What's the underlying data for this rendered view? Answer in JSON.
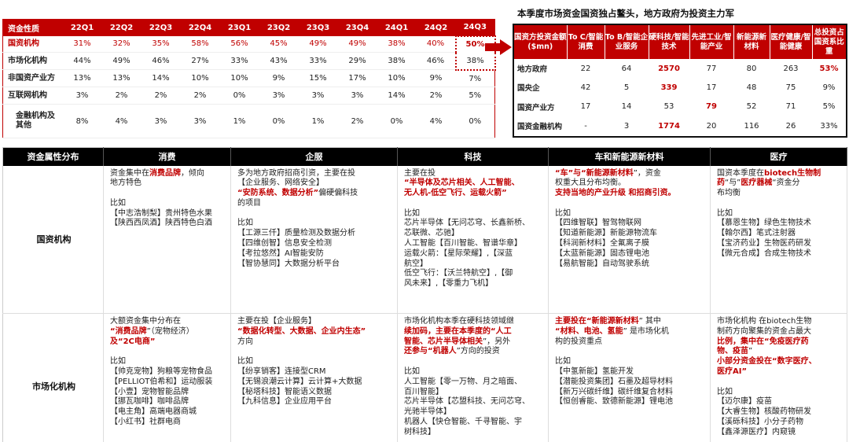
{
  "left_table": {
    "headers": [
      "资金性质",
      "22Q1",
      "22Q2",
      "22Q3",
      "22Q4",
      "23Q1",
      "23Q2",
      "23Q3",
      "23Q4",
      "24Q1",
      "24Q2",
      "24Q3"
    ],
    "rows": [
      {
        "label": "国资机构",
        "values": [
          "31%",
          "32%",
          "35%",
          "58%",
          "56%",
          "45%",
          "49%",
          "49%",
          "38%",
          "40%",
          "50%"
        ]
      },
      {
        "label": "市场化机构",
        "values": [
          "44%",
          "49%",
          "46%",
          "27%",
          "33%",
          "43%",
          "33%",
          "29%",
          "38%",
          "46%",
          "38%"
        ]
      },
      {
        "label": "非国资产业方",
        "values": [
          "13%",
          "13%",
          "14%",
          "10%",
          "10%",
          "9%",
          "15%",
          "17%",
          "10%",
          "9%",
          "7%"
        ]
      },
      {
        "label": "互联网机构",
        "values": [
          "3%",
          "2%",
          "2%",
          "2%",
          "0%",
          "3%",
          "3%",
          "3%",
          "14%",
          "2%",
          "5%"
        ]
      },
      {
        "label": "金融机构及其他",
        "values": [
          "8%",
          "4%",
          "3%",
          "3%",
          "1%",
          "0%",
          "1%",
          "2%",
          "0%",
          "4%",
          "0%"
        ]
      }
    ]
  },
  "right_table": {
    "title": "本季度市场资金国资独占鳌头，地方政府为投资主力军",
    "headers": [
      "国资方投资金额($mn)",
      "To C/智能消费",
      "To B/智能企业服务",
      "硬科技/智能技术",
      "先进工业/智能产业",
      "新能源新材料",
      "医疗健康/智能健康",
      "总投资占国资系比重"
    ],
    "rows": [
      {
        "label": "地方政府",
        "values": [
          "22",
          "64",
          "2570",
          "77",
          "80",
          "263",
          "53%"
        ]
      },
      {
        "label": "国央企",
        "values": [
          "42",
          "5",
          "339",
          "17",
          "48",
          "75",
          "9%"
        ]
      },
      {
        "label": "国资产业方",
        "values": [
          "17",
          "14",
          "53",
          "79",
          "52",
          "71",
          "5%"
        ]
      },
      {
        "label": "国资金融机构",
        "values": [
          "-",
          "3",
          "1774",
          "20",
          "116",
          "26",
          "33%"
        ]
      }
    ]
  },
  "bottom_table": {
    "headers": [
      "资金属性分布",
      "消费",
      "企服",
      "科技",
      "车和新能源新材料",
      "医疗"
    ],
    "rows": [
      {
        "label": "国资机构",
        "cells": [
          [
            [
              [
                "资金集中在",
                ""
              ],
              [
                "消费品牌",
                "r"
              ],
              [
                "，倾向",
                ""
              ]
            ],
            [
              [
                "地方特色",
                ""
              ]
            ],
            [],
            [
              [
                "比如",
                ""
              ]
            ],
            [
              [
                "【中志浩制梨】贵州特色水果",
                ""
              ]
            ],
            [
              [
                "【陕西西凤酒】陕西特色白酒",
                ""
              ]
            ]
          ],
          [
            [
              [
                "多为地方政府招商引资，主要在投",
                ""
              ]
            ],
            [
              [
                "【企业服务、网络安全】",
                ""
              ]
            ],
            [
              [
                "“安防系统、数据分析”",
                "r"
              ],
              [
                "偏硬偏科技",
                ""
              ]
            ],
            [
              [
                "的项目",
                ""
              ]
            ],
            [],
            [
              [
                "比如",
                ""
              ]
            ],
            [
              [
                "【工源三仟】质量检测及数据分析",
                ""
              ]
            ],
            [
              [
                "【四维创智】信息安全检测",
                ""
              ]
            ],
            [
              [
                "【考拉悠然】AI智能安防",
                ""
              ]
            ],
            [
              [
                "【智协慧同】大数据分析平台",
                ""
              ]
            ]
          ],
          [
            [
              [
                "主要在投",
                ""
              ]
            ],
            [
              [
                "“半导体及芯片相关、人工智能、",
                "r"
              ]
            ],
            [
              [
                "无人机-低空飞行、运载火箭”",
                "r"
              ]
            ],
            [],
            [
              [
                "比如",
                ""
              ]
            ],
            [
              [
                "芯片半导体【无问芯穹、长鑫新桥、",
                ""
              ]
            ],
            [
              [
                "芯联微、芯驰】",
                ""
              ]
            ],
            [
              [
                "人工智能【百川智能、智谱华章】",
                ""
              ]
            ],
            [
              [
                "运载火箭：【星际荣耀】,【深蓝",
                ""
              ]
            ],
            [
              [
                "航空】",
                ""
              ]
            ],
            [
              [
                "低空飞行：【沃兰特航空】,【御",
                ""
              ]
            ],
            [
              [
                "风未来】,【零重力飞机】",
                ""
              ]
            ]
          ],
          [
            [
              [
                "“车”与“",
                "r"
              ],
              [
                "新能源新材料",
                "r"
              ],
              [
                "”，资金",
                ""
              ]
            ],
            [
              [
                "权重大且分布均衡。",
                ""
              ]
            ],
            [
              [
                "支持当地的产业升级 和招商引资。",
                "r"
              ]
            ],
            [],
            [
              [
                "比如",
                ""
              ]
            ],
            [
              [
                "【四维智联】智驾物联网",
                ""
              ]
            ],
            [
              [
                "【知道新能源】新能源物流车",
                ""
              ]
            ],
            [
              [
                "【科润新材料】全氟离子膜",
                ""
              ]
            ],
            [
              [
                "【太蓝新能源】固态锂电池",
                ""
              ]
            ],
            [
              [
                "【易航智能】自动驾驶系统",
                ""
              ]
            ]
          ],
          [
            [
              [
                "国资本季度在",
                ""
              ],
              [
                "biotech生物制",
                "r"
              ]
            ],
            [
              [
                "药",
                "r"
              ],
              [
                "“与”",
                ""
              ],
              [
                "医疗器械",
                "r"
              ],
              [
                "“资金分",
                ""
              ]
            ],
            [
              [
                "布均衡",
                ""
              ]
            ],
            [],
            [
              [
                "比如",
                ""
              ]
            ],
            [
              [
                "【慕恩生物】绿色生物技术",
                ""
              ]
            ],
            [
              [
                "【翰尔西】笔式注射器",
                ""
              ]
            ],
            [
              [
                "【宝济药业】生物医药研发",
                ""
              ]
            ],
            [
              [
                "【微元合成】合成生物技术",
                ""
              ]
            ]
          ]
        ]
      },
      {
        "label": "市场化机构",
        "cells": [
          [
            [
              [
                "大额资金集中分布在",
                ""
              ]
            ],
            [
              [
                "“",
                "r"
              ],
              [
                "消费品牌",
                "r"
              ],
              [
                "”（宠物经济）",
                ""
              ]
            ],
            [
              [
                "及“",
                "r"
              ],
              [
                "2C电商",
                "r"
              ],
              [
                "”",
                "r"
              ]
            ],
            [],
            [
              [
                "比如",
                ""
              ]
            ],
            [
              [
                "【帅克宠物】狗粮等宠物食品",
                ""
              ]
            ],
            [
              [
                "【PELLIOT伯希和】运动服装",
                ""
              ]
            ],
            [
              [
                "【小壹】宠物智能品牌",
                ""
              ]
            ],
            [
              [
                "【挪瓦咖啡】咖啡品牌",
                ""
              ]
            ],
            [
              [
                "【电主角】高端电器商城",
                ""
              ]
            ],
            [
              [
                "【小红书】社群电商",
                ""
              ]
            ]
          ],
          [
            [
              [
                "主要在投【企业服务】",
                ""
              ]
            ],
            [
              [
                "“数据化转型、大数据、企业内生态”",
                "r"
              ]
            ],
            [
              [
                "方向",
                ""
              ]
            ],
            [],
            [
              [
                "比如",
                ""
              ]
            ],
            [
              [
                "【纷享销客】连接型CRM",
                ""
              ]
            ],
            [
              [
                "【无锡浪潮云计算】云计算+大数据",
                ""
              ]
            ],
            [
              [
                "【秘塔科技】智能语义数据",
                ""
              ]
            ],
            [
              [
                "【九科信息】企业应用平台",
                ""
              ]
            ]
          ],
          [
            [
              [
                "市场化机构本季在硬科技领域继",
                ""
              ]
            ],
            [
              [
                "续加码，主要在本季度的“",
                "r"
              ],
              [
                "人工",
                "r"
              ]
            ],
            [
              [
                "智能、芯片半导体相关",
                "r"
              ],
              [
                "”，另外",
                ""
              ]
            ],
            [
              [
                "还参与“",
                "r"
              ],
              [
                "机器人",
                "r"
              ],
              [
                "”方向的投资",
                ""
              ]
            ],
            [],
            [
              [
                "比如",
                ""
              ]
            ],
            [
              [
                "人工智能【零一万物、月之暗面、",
                ""
              ]
            ],
            [
              [
                "百川智能】",
                ""
              ]
            ],
            [
              [
                "芯片半导体【芯盟科技、无问芯穹、",
                ""
              ]
            ],
            [
              [
                "光驰半导体】",
                ""
              ]
            ],
            [
              [
                "机器人【快仓智能、千寻智能、宇",
                ""
              ]
            ],
            [
              [
                "树科技】",
                ""
              ]
            ]
          ],
          [
            [
              [
                "主要投在“",
                "r"
              ],
              [
                "新能源新材料",
                "r"
              ],
              [
                "” 其中",
                ""
              ]
            ],
            [
              [
                "“",
                "r"
              ],
              [
                "材料、电池、氢能",
                "r"
              ],
              [
                "” 是市场化机",
                ""
              ]
            ],
            [
              [
                "构的投资重点",
                ""
              ]
            ],
            [],
            [
              [
                "比如",
                ""
              ]
            ],
            [
              [
                "【中氢新能】氢能开发",
                ""
              ]
            ],
            [
              [
                "【潜能投资集团】石墨及超导材料",
                ""
              ]
            ],
            [
              [
                "【新万兴碳纤维】碳纤维复合材料",
                ""
              ]
            ],
            [
              [
                "【恒创睿能、致德新能源】锂电池",
                ""
              ]
            ]
          ],
          [
            [
              [
                "市场化机构 在biotech生物",
                ""
              ]
            ],
            [
              [
                "制药方向聚集的资金占最大",
                ""
              ]
            ],
            [
              [
                "比例，集中在“",
                "r"
              ],
              [
                "免疫医疗药",
                "r"
              ]
            ],
            [
              [
                "物、疫苗",
                "r"
              ],
              [
                "”",
                ""
              ]
            ],
            [
              [
                "小部分资金投在“",
                "r"
              ],
              [
                "数字医疗、",
                "r"
              ]
            ],
            [
              [
                "医疗AI",
                "r"
              ],
              [
                "”",
                "r"
              ]
            ],
            [],
            [
              [
                "比如",
                ""
              ]
            ],
            [
              [
                "【迈尔康】疫苗",
                ""
              ]
            ],
            [
              [
                "【大睿生物】核酸药物研发",
                ""
              ]
            ],
            [
              [
                "【溪砾科技】小分子药物",
                ""
              ]
            ],
            [
              [
                "【鑫泽源医疗】内窥镜",
                ""
              ]
            ]
          ]
        ]
      }
    ]
  }
}
